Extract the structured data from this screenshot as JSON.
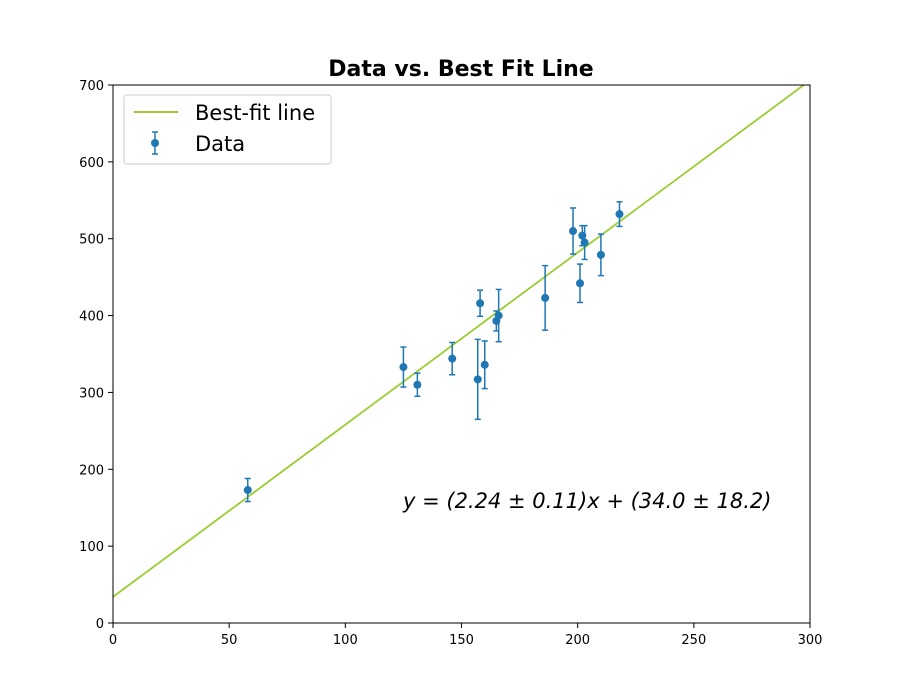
{
  "chart_data": {
    "type": "scatter",
    "title": "Data vs. Best Fit Line",
    "xlabel": "",
    "ylabel": "",
    "xlim": [
      0,
      300
    ],
    "ylim": [
      0,
      700
    ],
    "xticks": [
      0,
      50,
      100,
      150,
      200,
      250,
      300
    ],
    "yticks": [
      0,
      100,
      200,
      300,
      400,
      500,
      600,
      700
    ],
    "grid": false,
    "legend_position": "top-left",
    "series": [
      {
        "name": "Data",
        "kind": "errorbar",
        "color": "#1f77b4",
        "points": [
          {
            "x": 58,
            "y": 173,
            "err": 15
          },
          {
            "x": 125,
            "y": 333,
            "err": 26
          },
          {
            "x": 131,
            "y": 310,
            "err": 15
          },
          {
            "x": 146,
            "y": 344,
            "err": 21
          },
          {
            "x": 157,
            "y": 317,
            "err": 52
          },
          {
            "x": 158,
            "y": 416,
            "err": 17
          },
          {
            "x": 160,
            "y": 336,
            "err": 31
          },
          {
            "x": 165,
            "y": 393,
            "err": 13
          },
          {
            "x": 166,
            "y": 400,
            "err": 34
          },
          {
            "x": 186,
            "y": 423,
            "err": 42
          },
          {
            "x": 198,
            "y": 510,
            "err": 30
          },
          {
            "x": 201,
            "y": 442,
            "err": 25
          },
          {
            "x": 202,
            "y": 504,
            "err": 13
          },
          {
            "x": 203,
            "y": 495,
            "err": 22
          },
          {
            "x": 210,
            "y": 479,
            "err": 27
          },
          {
            "x": 218,
            "y": 532,
            "err": 16
          }
        ]
      },
      {
        "name": "Best-fit line",
        "kind": "line",
        "color": "#9acd32",
        "slope": 2.24,
        "intercept": 34.0
      }
    ],
    "annotation": "y = (2.24 ± 0.11)x + (34.0 ± 18.2)"
  }
}
